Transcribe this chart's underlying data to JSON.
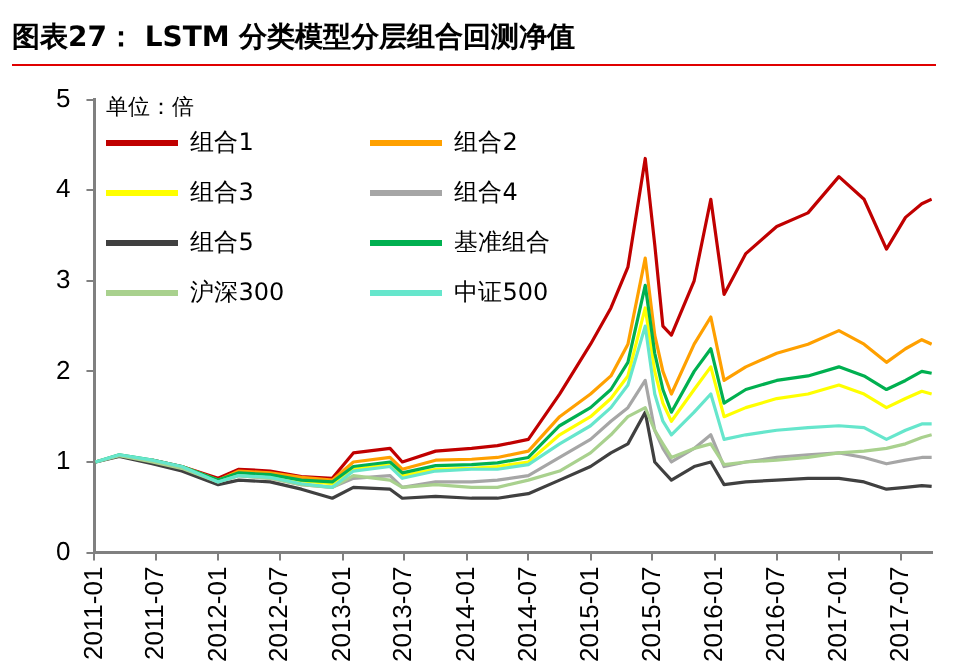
{
  "chart_data": {
    "type": "line",
    "title": "图表27： LSTM 分类模型分层组合回测净值",
    "annotations": [
      "单位：倍"
    ],
    "x": [
      "2011-01-04",
      "2011-03-15",
      "2011-06-20",
      "2011-09-15",
      "2011-12-31",
      "2012-03-01",
      "2012-06-01",
      "2012-09-01",
      "2012-12-01",
      "2013-02-01",
      "2013-05-20",
      "2013-06-25",
      "2013-10-01",
      "2014-01-15",
      "2014-04-01",
      "2014-07-01",
      "2014-10-01",
      "2014-12-31",
      "2015-03-01",
      "2015-04-20",
      "2015-06-10",
      "2015-07-08",
      "2015-08-01",
      "2015-08-26",
      "2015-11-01",
      "2015-12-20",
      "2016-01-28",
      "2016-04-01",
      "2016-07-01",
      "2016-10-01",
      "2016-12-31",
      "2017-03-15",
      "2017-05-20",
      "2017-07-15",
      "2017-09-01",
      "2017-09-30"
    ],
    "series": [
      {
        "name": "组合1",
        "color": "#c00000",
        "values": [
          null,
          null,
          1.02,
          0.95,
          0.82,
          0.92,
          0.9,
          0.84,
          0.82,
          1.1,
          1.15,
          1.0,
          1.12,
          1.15,
          1.18,
          1.25,
          1.75,
          2.3,
          2.7,
          3.15,
          4.35,
          3.4,
          2.5,
          2.4,
          3.0,
          3.9,
          2.85,
          3.3,
          3.6,
          3.75,
          4.15,
          3.9,
          3.35,
          3.7,
          3.85,
          3.9
        ]
      },
      {
        "name": "组合2",
        "color": "#ffa000",
        "values": [
          null,
          null,
          null,
          0.95,
          0.8,
          0.9,
          0.88,
          0.83,
          0.8,
          1.0,
          1.05,
          0.92,
          1.02,
          1.03,
          1.05,
          1.12,
          1.5,
          1.75,
          1.95,
          2.3,
          3.25,
          2.4,
          2.0,
          1.75,
          2.3,
          2.6,
          1.9,
          2.05,
          2.2,
          2.3,
          2.45,
          2.3,
          2.1,
          2.25,
          2.35,
          2.3
        ]
      },
      {
        "name": "组合3",
        "color": "#ffff00",
        "values": [
          null,
          null,
          null,
          null,
          null,
          null,
          0.85,
          0.79,
          0.76,
          0.92,
          0.97,
          0.85,
          0.92,
          0.93,
          0.95,
          1.0,
          1.3,
          1.5,
          1.7,
          1.95,
          2.7,
          2.0,
          1.65,
          1.45,
          1.8,
          2.05,
          1.5,
          1.6,
          1.7,
          1.75,
          1.85,
          1.75,
          1.6,
          1.7,
          1.78,
          1.75
        ]
      },
      {
        "name": "组合4",
        "color": "#a6a6a6",
        "values": [
          1.0,
          1.07,
          1.0,
          0.93,
          0.78,
          0.85,
          0.82,
          0.75,
          0.72,
          0.82,
          0.85,
          0.72,
          0.78,
          0.78,
          0.8,
          0.85,
          1.05,
          1.25,
          1.45,
          1.6,
          1.9,
          1.35,
          1.15,
          1.0,
          1.15,
          1.3,
          0.95,
          1.0,
          1.05,
          1.08,
          1.1,
          1.05,
          0.98,
          1.02,
          1.05,
          1.05
        ]
      },
      {
        "name": "组合5",
        "color": "#404040",
        "values": [
          1.0,
          1.06,
          0.98,
          0.9,
          0.75,
          0.8,
          0.78,
          0.7,
          0.6,
          0.72,
          0.7,
          0.6,
          0.62,
          0.6,
          0.6,
          0.65,
          0.8,
          0.95,
          1.1,
          1.2,
          1.55,
          1.0,
          0.9,
          0.8,
          0.95,
          1.0,
          0.75,
          0.78,
          0.8,
          0.82,
          0.82,
          0.78,
          0.7,
          0.72,
          0.74,
          0.73
        ]
      },
      {
        "name": "基准组合",
        "color": "#00b050",
        "values": [
          1.0,
          1.08,
          1.02,
          0.95,
          0.8,
          0.88,
          0.86,
          0.8,
          0.78,
          0.95,
          1.0,
          0.88,
          0.96,
          0.97,
          0.99,
          1.05,
          1.4,
          1.6,
          1.8,
          2.1,
          2.95,
          2.2,
          1.8,
          1.55,
          2.0,
          2.25,
          1.65,
          1.8,
          1.9,
          1.95,
          2.05,
          1.95,
          1.8,
          1.9,
          2.0,
          1.98
        ]
      },
      {
        "name": "沪深300",
        "color": "#a9d18e",
        "values": [
          1.0,
          1.07,
          1.0,
          0.93,
          0.78,
          0.85,
          0.82,
          0.75,
          0.72,
          0.85,
          0.8,
          0.72,
          0.75,
          0.72,
          0.72,
          0.8,
          0.9,
          1.1,
          1.3,
          1.5,
          1.6,
          1.35,
          1.2,
          1.05,
          1.15,
          1.2,
          0.97,
          1.0,
          1.02,
          1.05,
          1.1,
          1.12,
          1.15,
          1.2,
          1.27,
          1.3
        ]
      },
      {
        "name": "中证500",
        "color": "#66e6cc",
        "values": [
          1.0,
          1.08,
          1.02,
          0.95,
          0.78,
          0.85,
          0.83,
          0.76,
          0.72,
          0.9,
          0.95,
          0.82,
          0.9,
          0.92,
          0.92,
          0.97,
          1.2,
          1.4,
          1.6,
          1.85,
          2.5,
          1.75,
          1.45,
          1.3,
          1.55,
          1.75,
          1.25,
          1.3,
          1.35,
          1.38,
          1.4,
          1.38,
          1.25,
          1.35,
          1.42,
          1.42
        ]
      }
    ],
    "xlim": [
      "2011-01-01",
      "2017-10-01"
    ],
    "xticks": [
      "2011-01",
      "2011-07",
      "2012-01",
      "2012-07",
      "2013-01",
      "2013-07",
      "2014-01",
      "2014-07",
      "2015-01",
      "2015-07",
      "2016-01",
      "2016-07",
      "2017-01",
      "2017-07"
    ],
    "ylim": [
      0,
      5
    ],
    "yticks": [
      0,
      1,
      2,
      3,
      4,
      5
    ],
    "grid": false,
    "legend": "top left",
    "marker": "none",
    "line_style": "solid"
  }
}
